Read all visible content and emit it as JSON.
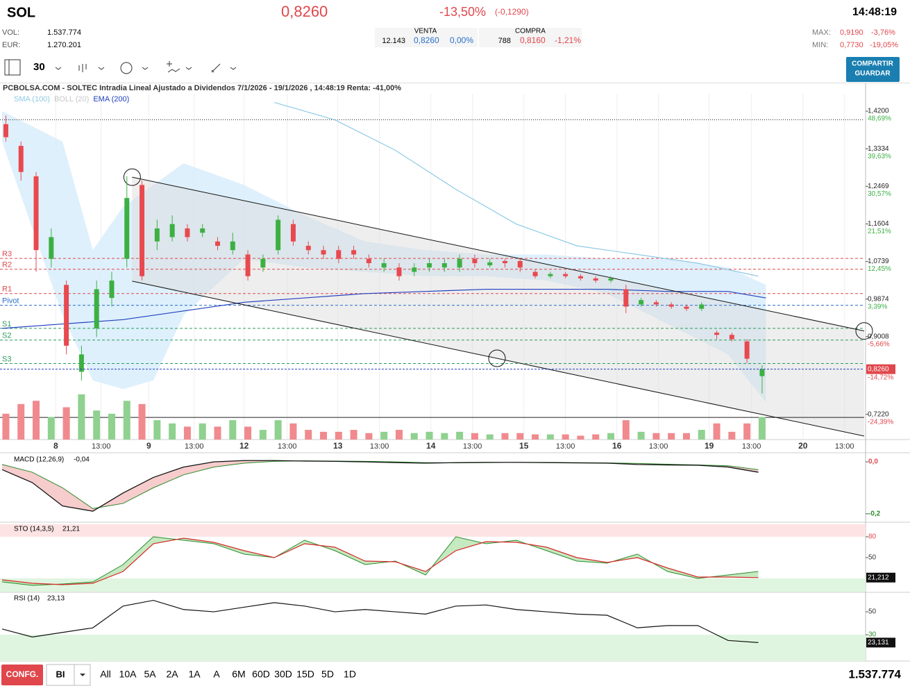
{
  "header": {
    "symbol": "SOL",
    "price": "0,8260",
    "change": "-13,50%",
    "change_abs": "(-0,1290)",
    "time": "14:48:19",
    "vol_label": "VOL:",
    "vol": "1.537.774",
    "eur_label": "EUR:",
    "eur": "1.270.201",
    "venta_label": "VENTA",
    "venta_qty": "12.143",
    "venta_price": "0,8260",
    "venta_pct": "0,00%",
    "compra_label": "COMPRA",
    "compra_qty": "788",
    "compra_price": "0,8160",
    "compra_pct": "-1,21%",
    "max_label": "MAX:",
    "max": "0,9190",
    "max_pct": "-3,76%",
    "min_label": "MIN:",
    "min": "0,7730",
    "min_pct": "-19,05%"
  },
  "toolbar": {
    "interval": "30",
    "share_button": [
      "COMPARTIR",
      "GUARDAR"
    ]
  },
  "chart_data": {
    "type": "candlestick",
    "title": "PCBOLSA.COM - SOLTEC Intradia Lineal Ajustado a Dividendos 7/1/2026 - 19/1/2026 , 14:48:19 Renta: -41,00%",
    "legend": [
      "SMA (100)",
      "BOLL (20)",
      "EMA (200)"
    ],
    "xlim": [
      0,
      114
    ],
    "ylim": [
      0.664,
      1.484
    ],
    "xticks": [
      {
        "value": 7.1,
        "label": "8"
      },
      {
        "value": 13.1,
        "label": "13:00"
      },
      {
        "value": 19.4,
        "label": "9"
      },
      {
        "value": 25.4,
        "label": "13:00"
      },
      {
        "value": 32.0,
        "label": "12"
      },
      {
        "value": 37.7,
        "label": "13:00"
      },
      {
        "value": 44.4,
        "label": "13"
      },
      {
        "value": 49.9,
        "label": "13:00"
      },
      {
        "value": 56.7,
        "label": "14"
      },
      {
        "value": 62.2,
        "label": "13:00"
      },
      {
        "value": 69.0,
        "label": "15"
      },
      {
        "value": 74.5,
        "label": "13:00"
      },
      {
        "value": 81.3,
        "label": "16"
      },
      {
        "value": 86.8,
        "label": "13:00"
      },
      {
        "value": 93.5,
        "label": "19"
      },
      {
        "value": 99.1,
        "label": "13:00"
      },
      {
        "value": 105.9,
        "label": "20"
      },
      {
        "value": 111.4,
        "label": "13:00"
      }
    ],
    "yticks": [
      {
        "value": 1.42,
        "label": "1,4200",
        "change": "48,69%"
      },
      {
        "value": 1.3334,
        "label": "1,3334",
        "change": "39,63%"
      },
      {
        "value": 1.2469,
        "label": "1,2469",
        "change": "30,57%"
      },
      {
        "value": 1.1604,
        "label": "1,1604",
        "change": "21,51%"
      },
      {
        "value": 1.0739,
        "label": "1,0739",
        "change": "12,45%"
      },
      {
        "value": 0.9874,
        "label": "0,9874",
        "change": "3,39%"
      },
      {
        "value": 0.9008,
        "label": "0,9008",
        "change": "-5,66%"
      },
      {
        "value": 0.722,
        "label": "0,7220",
        "change": "-24,39%"
      }
    ],
    "last": {
      "value": 0.826,
      "label": "0,8260",
      "change": "-14,72%"
    },
    "levels": [
      {
        "name": "R3",
        "value": 1.081,
        "color": "#e0474c"
      },
      {
        "name": "R2",
        "value": 1.056,
        "color": "#e0474c"
      },
      {
        "name": "R1",
        "value": 1.0,
        "color": "#e0474c"
      },
      {
        "name": "Pivot",
        "value": 0.973,
        "color": "#2a6fc9"
      },
      {
        "name": "S1",
        "value": 0.92,
        "color": "#2a9a5a"
      },
      {
        "name": "S2",
        "value": 0.893,
        "color": "#2a9a5a"
      },
      {
        "name": "S3",
        "value": 0.839,
        "color": "#2a9a5a"
      }
    ],
    "hlines": [
      {
        "value": 1.4,
        "style": "dotted"
      },
      {
        "value": 0.715,
        "style": "solid"
      }
    ],
    "trendlines": [
      {
        "x": [
          17.2,
          114
        ],
        "y": [
          1.268,
          0.914
        ]
      },
      {
        "x": [
          17.2,
          114
        ],
        "y": [
          1.0286,
          0.672
        ]
      }
    ],
    "candles": {
      "x": [
        0.5,
        2.5,
        4.5,
        6.5,
        8.5,
        10.5,
        12.5,
        14.5,
        16.5,
        18.5,
        20.5,
        22.5,
        24.5,
        26.5,
        28.5,
        30.5,
        32.5,
        34.5,
        36.5,
        38.5,
        40.5,
        42.5,
        44.5,
        46.5,
        48.5,
        50.5,
        52.5,
        54.5,
        56.5,
        58.5,
        60.5,
        62.5,
        64.5,
        66.5,
        68.5,
        70.5,
        72.5,
        74.5,
        76.5,
        78.5,
        80.5,
        82.5,
        84.5,
        86.5,
        88.5,
        90.5,
        92.5,
        94.5,
        96.5,
        98.5,
        100.5
      ],
      "open": [
        1.39,
        1.34,
        1.27,
        1.08,
        1.02,
        0.82,
        0.92,
        0.99,
        1.08,
        1.25,
        1.12,
        1.13,
        1.15,
        1.14,
        1.12,
        1.1,
        1.09,
        1.06,
        1.1,
        1.16,
        1.11,
        1.1,
        1.1,
        1.1,
        1.08,
        1.06,
        1.06,
        1.05,
        1.06,
        1.06,
        1.06,
        1.08,
        1.065,
        1.075,
        1.075,
        1.05,
        1.04,
        1.045,
        1.04,
        1.035,
        1.03,
        1.01,
        0.975,
        0.98,
        0.975,
        0.97,
        0.965,
        0.91,
        0.905,
        0.89,
        0.81
      ],
      "high": [
        1.41,
        1.35,
        1.28,
        1.15,
        1.03,
        0.88,
        1.03,
        1.05,
        1.27,
        1.26,
        1.17,
        1.18,
        1.16,
        1.16,
        1.13,
        1.14,
        1.1,
        1.09,
        1.18,
        1.17,
        1.12,
        1.11,
        1.11,
        1.11,
        1.09,
        1.08,
        1.07,
        1.07,
        1.08,
        1.08,
        1.09,
        1.09,
        1.08,
        1.08,
        1.08,
        1.055,
        1.05,
        1.05,
        1.045,
        1.04,
        1.04,
        1.02,
        0.99,
        0.985,
        0.98,
        0.975,
        0.98,
        0.915,
        0.91,
        0.895,
        0.835
      ],
      "low": [
        1.35,
        1.26,
        1.05,
        1.06,
        0.86,
        0.8,
        0.9,
        0.97,
        1.06,
        1.03,
        1.1,
        1.12,
        1.12,
        1.13,
        1.1,
        1.09,
        1.03,
        1.05,
        1.09,
        1.11,
        1.09,
        1.08,
        1.07,
        1.08,
        1.06,
        1.05,
        1.03,
        1.04,
        1.05,
        1.05,
        1.05,
        1.06,
        1.06,
        1.06,
        1.05,
        1.035,
        1.035,
        1.035,
        1.03,
        1.025,
        1.025,
        0.955,
        0.97,
        0.97,
        0.965,
        0.96,
        0.96,
        0.895,
        0.89,
        0.84,
        0.77
      ],
      "close": [
        1.36,
        1.28,
        1.1,
        1.13,
        0.88,
        0.86,
        1.01,
        1.03,
        1.22,
        1.04,
        1.15,
        1.16,
        1.13,
        1.15,
        1.11,
        1.12,
        1.04,
        1.08,
        1.17,
        1.12,
        1.1,
        1.09,
        1.08,
        1.09,
        1.07,
        1.07,
        1.04,
        1.06,
        1.07,
        1.07,
        1.08,
        1.07,
        1.072,
        1.07,
        1.06,
        1.04,
        1.045,
        1.04,
        1.035,
        1.03,
        1.035,
        0.97,
        0.985,
        0.975,
        0.97,
        0.965,
        0.975,
        0.905,
        0.895,
        0.85,
        0.826
      ],
      "volume": [
        40,
        55,
        60,
        35,
        50,
        70,
        45,
        40,
        60,
        55,
        30,
        25,
        20,
        25,
        20,
        30,
        20,
        15,
        30,
        25,
        15,
        12,
        12,
        15,
        10,
        12,
        15,
        10,
        12,
        10,
        12,
        10,
        8,
        10,
        10,
        8,
        8,
        8,
        6,
        8,
        10,
        30,
        12,
        10,
        10,
        10,
        15,
        25,
        12,
        25,
        35
      ],
      "volume_ylim": [
        0,
        100
      ],
      "up_color": "#3cb043",
      "down_color": "#e8494f"
    },
    "sma": {
      "color": "#8ecae6",
      "x": [
        36,
        44,
        52,
        60,
        68,
        76,
        84,
        92,
        100
      ],
      "values": [
        1.44,
        1.4,
        1.33,
        1.24,
        1.16,
        1.11,
        1.09,
        1.07,
        1.04
      ]
    },
    "ema": {
      "color": "#1f3fbf",
      "x": [
        0,
        8,
        16,
        24,
        32,
        40,
        48,
        56,
        64,
        72,
        80,
        88,
        96,
        101
      ],
      "values": [
        0.92,
        0.93,
        0.94,
        0.96,
        0.98,
        0.99,
        1.0,
        1.005,
        1.01,
        1.01,
        1.01,
        1.005,
        1.005,
        0.99
      ]
    },
    "boll": {
      "color": "#d6ecfb",
      "x": [
        0,
        8,
        12,
        16,
        20,
        24,
        32,
        40,
        48,
        56,
        64,
        72,
        80,
        88,
        96,
        101
      ],
      "upper": [
        1.42,
        1.35,
        1.1,
        1.2,
        1.25,
        1.3,
        1.25,
        1.18,
        1.12,
        1.1,
        1.09,
        1.09,
        1.08,
        1.08,
        1.06,
        1.02
      ],
      "lower": [
        1.35,
        0.95,
        0.8,
        0.78,
        0.8,
        0.95,
        1.08,
        1.06,
        1.05,
        1.04,
        1.04,
        1.03,
        1.0,
        0.93,
        0.86,
        0.75
      ]
    },
    "indicators": {
      "x": [
        0,
        4,
        8,
        12,
        16,
        20,
        24,
        28,
        32,
        36,
        40,
        44,
        48,
        52,
        56,
        60,
        64,
        68,
        72,
        76,
        80,
        84,
        88,
        92,
        96,
        100
      ],
      "macd": {
        "name": "MACD (12,26,9)",
        "value_label": "-0,04",
        "ylim": [
          -0.227,
          0.027
        ],
        "yticks": [
          {
            "value": 0,
            "label": "0,0"
          },
          {
            "value": -0.2,
            "label": "-0,2"
          }
        ],
        "line": [
          -0.03,
          -0.08,
          -0.17,
          -0.19,
          -0.12,
          -0.06,
          -0.02,
          0.0,
          0.005,
          0.005,
          0.003,
          0.002,
          0.0,
          -0.003,
          -0.005,
          -0.003,
          -0.002,
          -0.002,
          -0.003,
          -0.004,
          -0.005,
          -0.01,
          -0.012,
          -0.013,
          -0.02,
          -0.04
        ],
        "signal": [
          -0.01,
          -0.04,
          -0.1,
          -0.18,
          -0.16,
          -0.1,
          -0.05,
          -0.02,
          -0.005,
          0.002,
          0.004,
          0.003,
          0.002,
          0.0,
          -0.003,
          -0.004,
          -0.003,
          -0.002,
          -0.002,
          -0.003,
          -0.004,
          -0.006,
          -0.009,
          -0.012,
          -0.015,
          -0.03
        ]
      },
      "sto": {
        "name": "STO (14,3,5)",
        "value_label": "21,21",
        "last_label": "21,212",
        "ylim": [
          1,
          98
        ],
        "yticks": [
          80,
          50
        ],
        "k": [
          15,
          10,
          12,
          15,
          40,
          80,
          75,
          70,
          55,
          50,
          75,
          60,
          40,
          45,
          25,
          80,
          70,
          75,
          60,
          45,
          42,
          55,
          30,
          20,
          25,
          30
        ],
        "d": [
          18,
          13,
          11,
          13,
          30,
          70,
          78,
          72,
          60,
          50,
          70,
          65,
          45,
          44,
          30,
          60,
          73,
          72,
          65,
          50,
          43,
          50,
          35,
          22,
          22,
          21.21
        ]
      },
      "rsi": {
        "name": "RSI (14)",
        "value_label": "23,13",
        "last_label": "23,131",
        "ylim": [
          7,
          65.8
        ],
        "yticks": [
          50,
          30
        ],
        "values": [
          35,
          28,
          32,
          36,
          55,
          60,
          52,
          50,
          54,
          58,
          55,
          50,
          52,
          50,
          48,
          55,
          56,
          52,
          50,
          48,
          47,
          36,
          38,
          38,
          25,
          23.13
        ]
      }
    }
  },
  "footer": {
    "config": "CONFG.",
    "mode": "BI",
    "ranges": [
      "All",
      "10A",
      "5A",
      "2A",
      "1A",
      "A",
      "6M",
      "60D",
      "30D",
      "15D",
      "5D",
      "1D"
    ],
    "volume": "1.537.774"
  }
}
